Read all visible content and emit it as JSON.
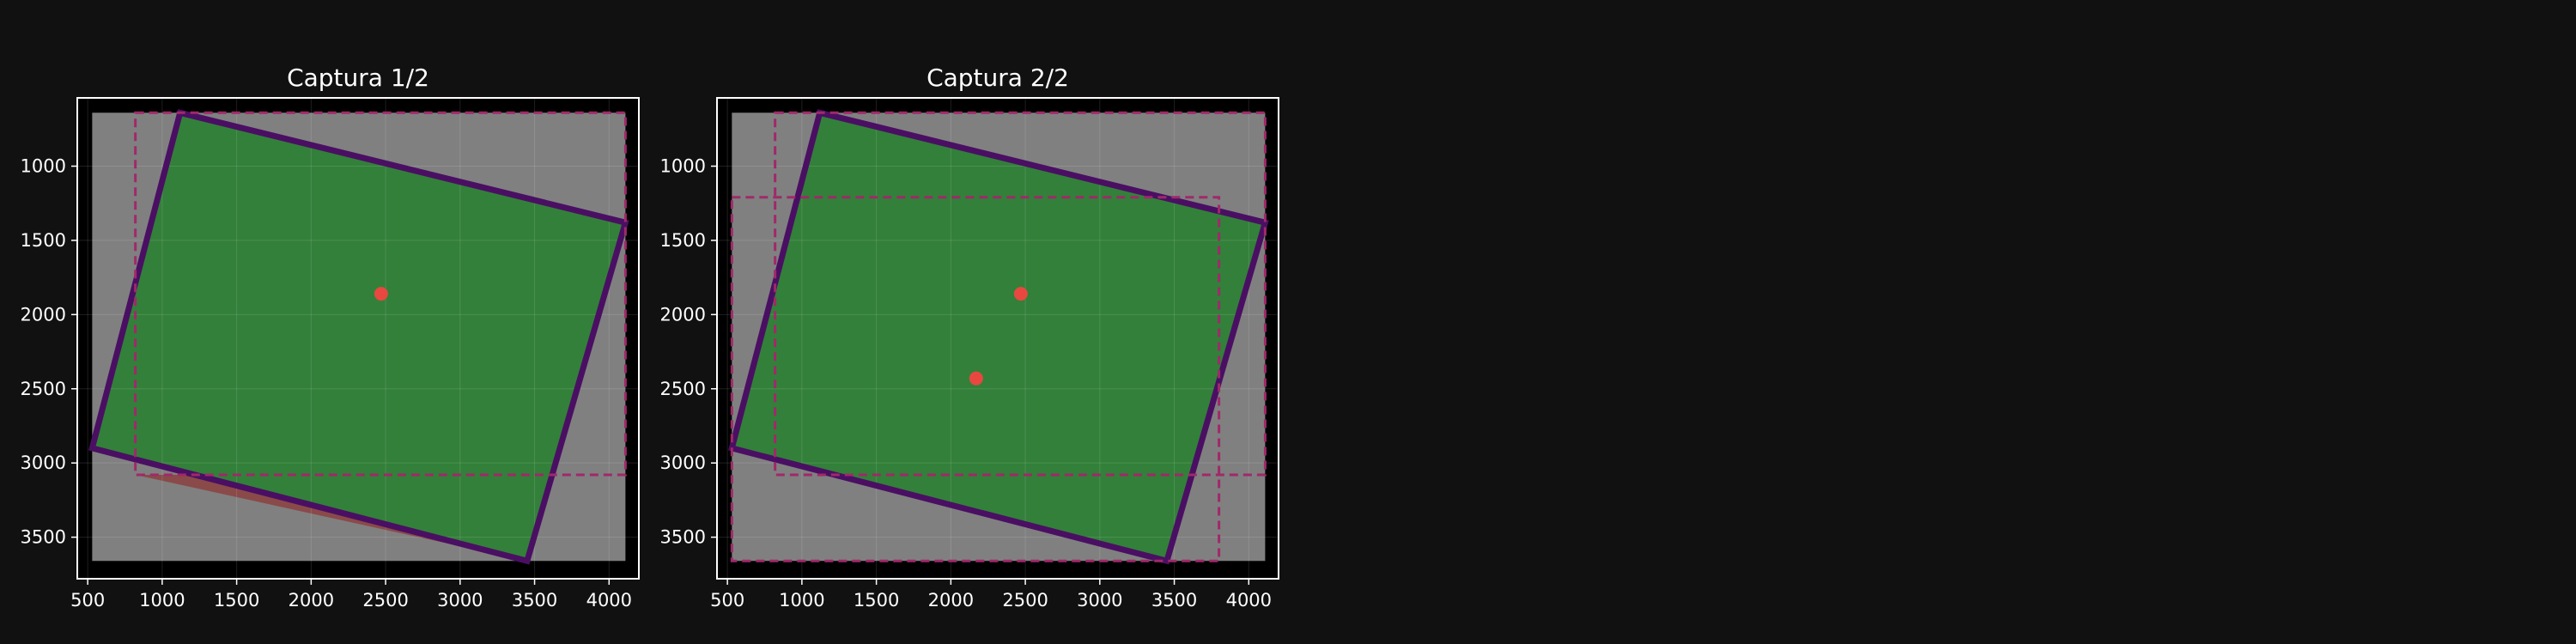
{
  "chart_data": [
    {
      "type": "diagram",
      "title": "Captura 1/2",
      "xlim": [
        430,
        4200
      ],
      "ylim": [
        3780,
        540
      ],
      "x_ticks": [
        500,
        1000,
        1500,
        2000,
        2500,
        3000,
        3500,
        4000
      ],
      "y_ticks": [
        1000,
        1500,
        2000,
        2500,
        3000,
        3500
      ],
      "grid": true,
      "image_extent": {
        "x": [
          530,
          4110
        ],
        "y": [
          640,
          3660
        ]
      },
      "rotated_frame": [
        [
          1120,
          640
        ],
        [
          4110,
          1380
        ],
        [
          3450,
          3660
        ],
        [
          530,
          2900
        ]
      ],
      "crop_boxes": [
        {
          "x": [
            820,
            4110
          ],
          "y": [
            640,
            3080
          ]
        }
      ],
      "uncovered_regions": [
        [
          [
            820,
            1810
          ],
          [
            530,
            2900
          ],
          [
            820,
            2970
          ]
        ],
        [
          [
            820,
            3080
          ],
          [
            3620,
            3080
          ],
          [
            3450,
            3660
          ]
        ]
      ],
      "centers": [
        [
          2470,
          1860
        ]
      ],
      "colors": {
        "background": "#000000",
        "image": "#808080",
        "frame_fill": "#33803a",
        "frame_edge": "#4a0f63",
        "uncovered": "#8a4a49",
        "crop": "#a0296a",
        "center": "#e8483f"
      }
    },
    {
      "type": "diagram",
      "title": "Captura 2/2",
      "xlim": [
        430,
        4200
      ],
      "ylim": [
        3780,
        540
      ],
      "x_ticks": [
        500,
        1000,
        1500,
        2000,
        2500,
        3000,
        3500,
        4000
      ],
      "y_ticks": [
        1000,
        1500,
        2000,
        2500,
        3000,
        3500
      ],
      "grid": true,
      "image_extent": {
        "x": [
          530,
          4110
        ],
        "y": [
          640,
          3660
        ]
      },
      "rotated_frame": [
        [
          1120,
          640
        ],
        [
          4110,
          1380
        ],
        [
          3450,
          3660
        ],
        [
          530,
          2900
        ]
      ],
      "crop_boxes": [
        {
          "x": [
            820,
            4110
          ],
          "y": [
            640,
            3080
          ]
        },
        {
          "x": [
            530,
            3800
          ],
          "y": [
            1210,
            3660
          ]
        }
      ],
      "uncovered_regions": [],
      "centers": [
        [
          2470,
          1860
        ],
        [
          2170,
          2430
        ]
      ],
      "colors": {
        "background": "#000000",
        "image": "#808080",
        "frame_fill": "#33803a",
        "frame_edge": "#4a0f63",
        "uncovered": "#8a4a49",
        "crop": "#a0296a",
        "center": "#e8483f"
      }
    }
  ]
}
